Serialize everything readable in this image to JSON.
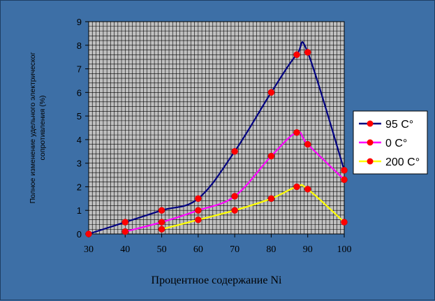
{
  "chart_data": {
    "type": "line",
    "x": [
      30,
      40,
      50,
      60,
      70,
      80,
      87,
      90,
      100
    ],
    "xlim": [
      30,
      100
    ],
    "ylim": [
      0,
      9
    ],
    "xticks": [
      "30",
      "40",
      "50",
      "60",
      "70",
      "80",
      "90",
      "100"
    ],
    "yticks": [
      "0",
      "1",
      "2",
      "3",
      "4",
      "5",
      "6",
      "7",
      "8",
      "9"
    ],
    "xlabel": "Процентное содержание Ni",
    "ylabel": [
      "Полное изменение удельного электрическог",
      "сопротивления (%)"
    ],
    "grid": true,
    "legend": "right",
    "series": [
      {
        "name": "95 C°",
        "line_color": "#000080",
        "marker_color": "#ff0000",
        "points": [
          [
            30,
            0
          ],
          [
            40,
            0.5
          ],
          [
            50,
            1.0
          ],
          [
            60,
            1.5
          ],
          [
            70,
            3.5
          ],
          [
            80,
            6.0
          ],
          [
            87,
            7.6
          ],
          [
            90,
            7.7
          ],
          [
            100,
            2.7
          ]
        ]
      },
      {
        "name": "0 C°",
        "line_color": "#ff00ff",
        "marker_color": "#ff0000",
        "points": [
          [
            40,
            0.1
          ],
          [
            50,
            0.5
          ],
          [
            60,
            1.0
          ],
          [
            70,
            1.6
          ],
          [
            80,
            3.3
          ],
          [
            87,
            4.3
          ],
          [
            90,
            3.8
          ],
          [
            100,
            2.3
          ]
        ]
      },
      {
        "name": "200 C°",
        "line_color": "#ffff00",
        "marker_color": "#ff0000",
        "points": [
          [
            50,
            0.2
          ],
          [
            60,
            0.6
          ],
          [
            70,
            1.0
          ],
          [
            80,
            1.5
          ],
          [
            87,
            2.0
          ],
          [
            90,
            1.9
          ],
          [
            100,
            0.5
          ]
        ]
      }
    ]
  },
  "colors": {
    "background": "#3d6fa6",
    "plot_area": "#c0c0c0",
    "grid": "#000000"
  }
}
